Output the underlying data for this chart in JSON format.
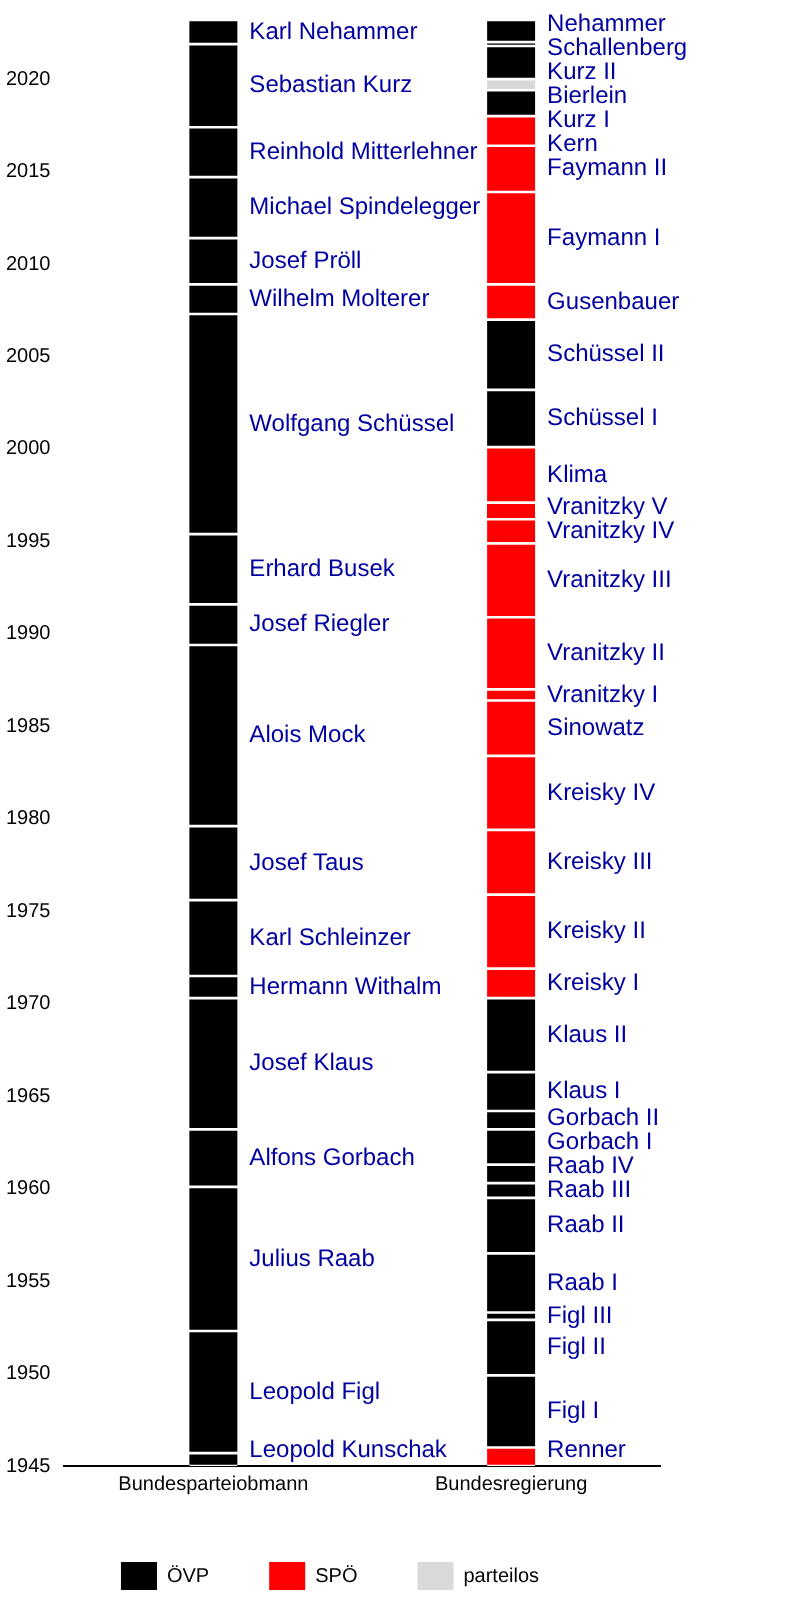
{
  "chart_data": {
    "type": "bar",
    "categories": [
      "Bundesparteiobmann",
      "Bundesregierung"
    ],
    "ylim": [
      1945,
      2023.2
    ],
    "yticks": [
      1945,
      1950,
      1955,
      1960,
      1965,
      1970,
      1975,
      1980,
      1985,
      1990,
      1995,
      2000,
      2005,
      2010,
      2015,
      2020
    ],
    "grid": false,
    "legend": "bottom",
    "series": [
      {
        "name": "ÖVP",
        "color": "#000000",
        "values": [
          null,
          null
        ]
      },
      {
        "name": "SPÖ",
        "color": "#ff0000",
        "values": [
          null,
          null
        ]
      },
      {
        "name": "parteilos",
        "color": "#d9d9d9",
        "values": [
          null,
          null
        ]
      },
      {
        "name": "Leopold Kunschak",
        "color": "#000000",
        "values": [
          0.7,
          null
        ],
        "base": [
          1945,
          null
        ]
      },
      {
        "name": "Leopold Figl",
        "color": "#000000",
        "values": [
          6.6,
          null
        ],
        "base": [
          1945.7,
          null
        ]
      },
      {
        "name": "Julius Raab",
        "color": "#000000",
        "values": [
          7.8,
          null
        ],
        "base": [
          1952.3,
          null
        ]
      },
      {
        "name": "Alfons Gorbach",
        "color": "#000000",
        "values": [
          3.1,
          null
        ],
        "base": [
          1960.1,
          null
        ]
      },
      {
        "name": "Josef Klaus",
        "color": "#000000",
        "values": [
          7.1,
          null
        ],
        "base": [
          1963.2,
          null
        ]
      },
      {
        "name": "Hermann Withalm",
        "color": "#000000",
        "values": [
          1.2,
          null
        ],
        "base": [
          1970.3,
          null
        ]
      },
      {
        "name": "Karl Schleinzer",
        "color": "#000000",
        "values": [
          4.1,
          null
        ],
        "base": [
          1971.5,
          null
        ]
      },
      {
        "name": "Josef Taus",
        "color": "#000000",
        "values": [
          4.0,
          null
        ],
        "base": [
          1975.6,
          null
        ]
      },
      {
        "name": "Alois Mock",
        "color": "#000000",
        "values": [
          9.8,
          null
        ],
        "base": [
          1979.6,
          null
        ]
      },
      {
        "name": "Josef Riegler",
        "color": "#000000",
        "values": [
          2.2,
          null
        ],
        "base": [
          1989.4,
          null
        ]
      },
      {
        "name": "Erhard Busek",
        "color": "#000000",
        "values": [
          3.8,
          null
        ],
        "base": [
          1991.6,
          null
        ]
      },
      {
        "name": "Wolfgang Schüssel",
        "color": "#000000",
        "values": [
          11.9,
          null
        ],
        "base": [
          1995.4,
          null
        ]
      },
      {
        "name": "Wilhelm Molterer",
        "color": "#000000",
        "values": [
          1.6,
          null
        ],
        "base": [
          2007.3,
          null
        ]
      },
      {
        "name": "Josef Pröll",
        "color": "#000000",
        "values": [
          2.5,
          null
        ],
        "base": [
          2008.9,
          null
        ]
      },
      {
        "name": "Michael Spindelegger",
        "color": "#000000",
        "values": [
          3.3,
          null
        ],
        "base": [
          2011.4,
          null
        ]
      },
      {
        "name": "Reinhold Mitterlehner",
        "color": "#000000",
        "values": [
          2.7,
          null
        ],
        "base": [
          2014.7,
          null
        ]
      },
      {
        "name": "Sebastian Kurz",
        "color": "#000000",
        "values": [
          4.5,
          null
        ],
        "base": [
          2017.4,
          null
        ]
      },
      {
        "name": "Karl Nehammer",
        "color": "#000000",
        "values": [
          1.3,
          null
        ],
        "base": [
          2021.9,
          null
        ]
      },
      {
        "name": "Renner",
        "color": "#ff0000",
        "values": [
          null,
          1.0
        ],
        "base": [
          null,
          1945
        ]
      },
      {
        "name": "Figl I",
        "color": "#000000",
        "values": [
          null,
          3.9
        ],
        "base": [
          null,
          1946.0
        ]
      },
      {
        "name": "Figl II",
        "color": "#000000",
        "values": [
          null,
          3.0
        ],
        "base": [
          null,
          1949.9
        ]
      },
      {
        "name": "Figl III",
        "color": "#000000",
        "values": [
          null,
          0.4
        ],
        "base": [
          null,
          1952.9
        ]
      },
      {
        "name": "Raab I",
        "color": "#000000",
        "values": [
          null,
          3.2
        ],
        "base": [
          null,
          1953.3
        ]
      },
      {
        "name": "Raab II",
        "color": "#000000",
        "values": [
          null,
          3.0
        ],
        "base": [
          null,
          1956.5
        ]
      },
      {
        "name": "Raab III",
        "color": "#000000",
        "values": [
          null,
          0.8
        ],
        "base": [
          null,
          1959.5
        ]
      },
      {
        "name": "Raab IV",
        "color": "#000000",
        "values": [
          null,
          1.0
        ],
        "base": [
          null,
          1960.3
        ]
      },
      {
        "name": "Gorbach I",
        "color": "#000000",
        "values": [
          null,
          1.9
        ],
        "base": [
          null,
          1961.3
        ]
      },
      {
        "name": "Gorbach II",
        "color": "#000000",
        "values": [
          null,
          1.0
        ],
        "base": [
          null,
          1963.2
        ]
      },
      {
        "name": "Klaus I",
        "color": "#000000",
        "values": [
          null,
          2.1
        ],
        "base": [
          null,
          1964.2
        ]
      },
      {
        "name": "Klaus II",
        "color": "#000000",
        "values": [
          null,
          4.0
        ],
        "base": [
          null,
          1966.3
        ]
      },
      {
        "name": "Kreisky I",
        "color": "#ff0000",
        "values": [
          null,
          1.6
        ],
        "base": [
          null,
          1970.3
        ]
      },
      {
        "name": "Kreisky II",
        "color": "#ff0000",
        "values": [
          null,
          4.0
        ],
        "base": [
          null,
          1971.9
        ]
      },
      {
        "name": "Kreisky III",
        "color": "#ff0000",
        "values": [
          null,
          3.5
        ],
        "base": [
          null,
          1975.9
        ]
      },
      {
        "name": "Kreisky IV",
        "color": "#ff0000",
        "values": [
          null,
          4.0
        ],
        "base": [
          null,
          1979.4
        ]
      },
      {
        "name": "Sinowatz",
        "color": "#ff0000",
        "values": [
          null,
          3.0
        ],
        "base": [
          null,
          1983.4
        ]
      },
      {
        "name": "Vranitzky I",
        "color": "#ff0000",
        "values": [
          null,
          0.6
        ],
        "base": [
          null,
          1986.4
        ]
      },
      {
        "name": "Vranitzky II",
        "color": "#ff0000",
        "values": [
          null,
          3.9
        ],
        "base": [
          null,
          1987.0
        ]
      },
      {
        "name": "Vranitzky III",
        "color": "#ff0000",
        "values": [
          null,
          4.0
        ],
        "base": [
          null,
          1990.9
        ]
      },
      {
        "name": "Vranitzky IV",
        "color": "#ff0000",
        "values": [
          null,
          1.3
        ],
        "base": [
          null,
          1994.9
        ]
      },
      {
        "name": "Vranitzky V",
        "color": "#ff0000",
        "values": [
          null,
          0.9
        ],
        "base": [
          null,
          1996.2
        ]
      },
      {
        "name": "Klima",
        "color": "#ff0000",
        "values": [
          null,
          3.0
        ],
        "base": [
          null,
          1997.1
        ]
      },
      {
        "name": "Schüssel I",
        "color": "#000000",
        "values": [
          null,
          3.1
        ],
        "base": [
          null,
          2000.1
        ]
      },
      {
        "name": "Schüssel II",
        "color": "#000000",
        "values": [
          null,
          3.8
        ],
        "base": [
          null,
          2003.2
        ]
      },
      {
        "name": "Gusenbauer",
        "color": "#ff0000",
        "values": [
          null,
          1.9
        ],
        "base": [
          null,
          2007.0
        ]
      },
      {
        "name": "Faymann I",
        "color": "#ff0000",
        "values": [
          null,
          5.0
        ],
        "base": [
          null,
          2008.9
        ]
      },
      {
        "name": "Faymann II",
        "color": "#ff0000",
        "values": [
          null,
          2.5
        ],
        "base": [
          null,
          2013.9
        ]
      },
      {
        "name": "Kern",
        "color": "#ff0000",
        "values": [
          null,
          1.6
        ],
        "base": [
          null,
          2016.4
        ]
      },
      {
        "name": "Kurz I",
        "color": "#000000",
        "values": [
          null,
          1.4
        ],
        "base": [
          null,
          2018.0
        ]
      },
      {
        "name": "Bierlein",
        "color": "#d9d9d9",
        "values": [
          null,
          0.6
        ],
        "base": [
          null,
          2019.4
        ]
      },
      {
        "name": "Kurz II",
        "color": "#000000",
        "values": [
          null,
          1.8
        ],
        "base": [
          null,
          2020.0
        ]
      },
      {
        "name": "Schallenberg",
        "color": "#000000",
        "values": [
          null,
          0.2
        ],
        "base": [
          null,
          2021.8
        ]
      },
      {
        "name": "Nehammer",
        "color": "#000000",
        "values": [
          null,
          1.2
        ],
        "base": [
          null,
          2022.0
        ]
      }
    ]
  }
}
